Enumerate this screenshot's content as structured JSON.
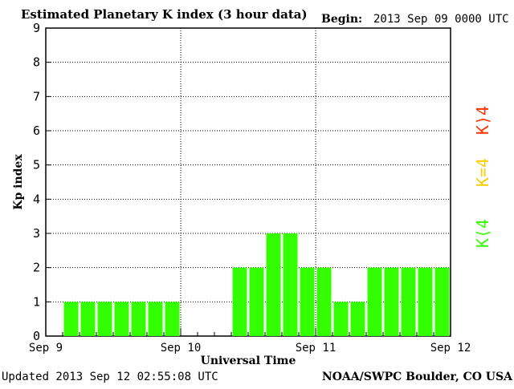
{
  "header": {
    "title": "Estimated Planetary K index (3 hour data)",
    "begin_label": "Begin:",
    "begin_value": "2013 Sep 09 0000 UTC"
  },
  "footer": {
    "updated": "Updated 2013 Sep 12 02:55:08 UTC",
    "source": "NOAA/SWPC Boulder, CO USA"
  },
  "legend": {
    "high": {
      "text": "K⟩4",
      "color": "#ff3300"
    },
    "equal": {
      "text": "K=4",
      "color": "#ffcc00"
    },
    "low": {
      "text": "K⟨4",
      "color": "#33ff00"
    }
  },
  "chart_data": {
    "type": "bar",
    "title": "Estimated Planetary K index (3 hour data)",
    "xlabel": "Universal Time",
    "ylabel": "Kp index",
    "ylim": [
      0,
      9
    ],
    "yticks": [
      "0",
      "1",
      "2",
      "3",
      "4",
      "5",
      "6",
      "7",
      "8",
      "9"
    ],
    "xticks": [
      "Sep 9",
      "Sep 10",
      "Sep 11",
      "Sep 12"
    ],
    "grid": true,
    "bar_color": "#33ff00",
    "categories": [
      "Sep 9 00",
      "Sep 9 03",
      "Sep 9 06",
      "Sep 9 09",
      "Sep 9 12",
      "Sep 9 15",
      "Sep 9 18",
      "Sep 9 21",
      "Sep 10 00",
      "Sep 10 03",
      "Sep 10 06",
      "Sep 10 09",
      "Sep 10 12",
      "Sep 10 15",
      "Sep 10 18",
      "Sep 10 21",
      "Sep 11 00",
      "Sep 11 03",
      "Sep 11 06",
      "Sep 11 09",
      "Sep 11 12",
      "Sep 11 15",
      "Sep 11 18",
      "Sep 11 21"
    ],
    "values": [
      null,
      1,
      1,
      1,
      1,
      1,
      1,
      1,
      null,
      null,
      null,
      2,
      2,
      3,
      3,
      2,
      2,
      1,
      1,
      2,
      2,
      2,
      2,
      2
    ]
  }
}
